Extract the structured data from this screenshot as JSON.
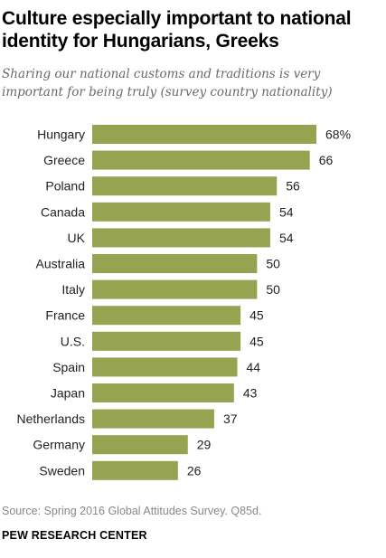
{
  "title": "Culture especially important to national identity for Hungarians, Greeks",
  "subtitle": "Sharing our national customs and traditions is very important for being truly (survey country nationality)",
  "source": "Source: Spring 2016 Global Attitudes Survey. Q85d.",
  "brand": "PEW RESEARCH CENTER",
  "colors": {
    "bar": "#96a351"
  },
  "chart_data": {
    "type": "bar",
    "orientation": "horizontal",
    "categories": [
      "Hungary",
      "Greece",
      "Poland",
      "Canada",
      "UK",
      "Australia",
      "Italy",
      "France",
      "U.S.",
      "Spain",
      "Japan",
      "Netherlands",
      "Germany",
      "Sweden"
    ],
    "values": [
      68,
      66,
      56,
      54,
      54,
      50,
      50,
      45,
      45,
      44,
      43,
      37,
      29,
      26
    ],
    "value_labels": [
      "68%",
      "66",
      "56",
      "54",
      "54",
      "50",
      "50",
      "45",
      "45",
      "44",
      "43",
      "37",
      "29",
      "26"
    ],
    "xlim": [
      0,
      68
    ],
    "grid": false,
    "legend": "none"
  }
}
